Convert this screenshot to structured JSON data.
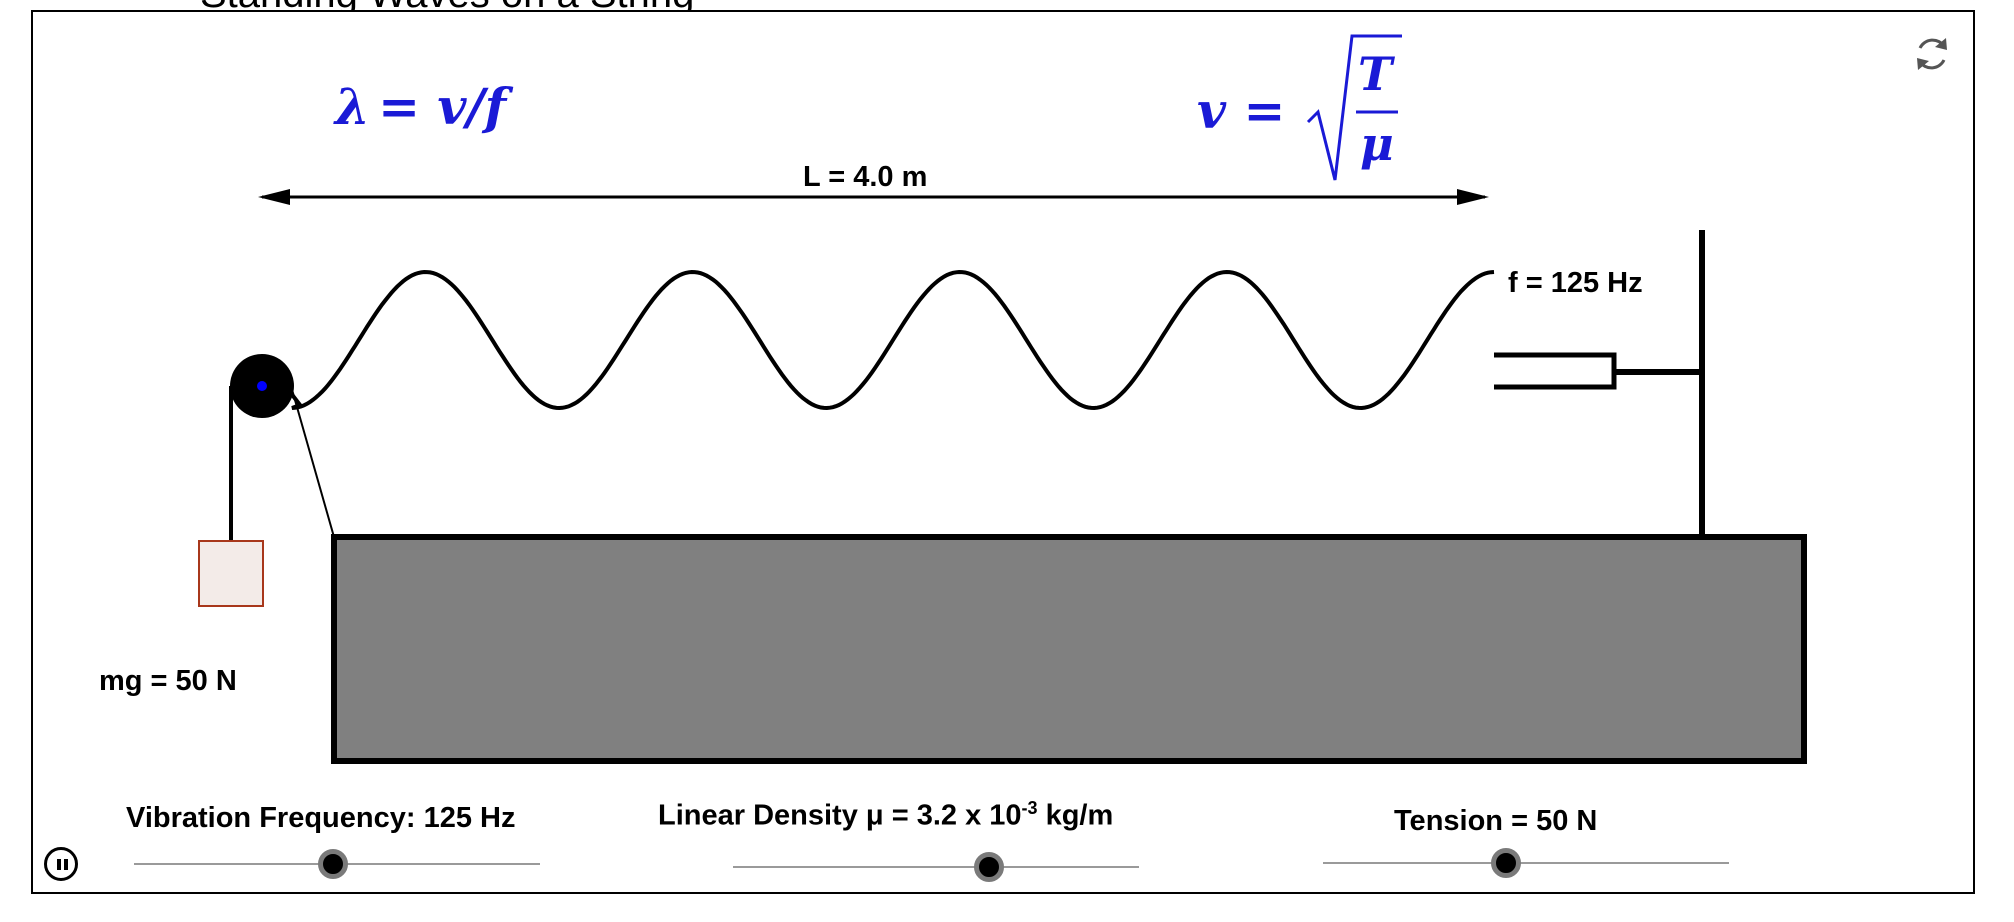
{
  "page": {
    "heading": "Standing Waves on a String"
  },
  "formulas": {
    "wavelength_lhs": "λ",
    "wavelength_rhs": "= v/f",
    "speed_lhs": "v =",
    "speed_numerator": "T",
    "speed_denominator": "μ"
  },
  "diagram": {
    "length_label": "L = 4.0 m",
    "frequency_label": "f = 125 Hz",
    "weight_label": "mg = 50 N",
    "table_color": "#808080",
    "mass_fill": "#f3ebe8",
    "mass_stroke": "#a8371b",
    "pulley_dot_color": "#0000ff",
    "wave_color": "#000000"
  },
  "controls": {
    "frequency": {
      "label": "Vibration Frequency: 125 Hz",
      "value_fraction": 0.49
    },
    "density": {
      "label_prefix": "Linear Density  μ = 3.2 x 10",
      "label_exponent": "-3",
      "label_suffix": " kg/m",
      "value_fraction": 0.63
    },
    "tension": {
      "label": "Tension = 50 N",
      "value_fraction": 0.45
    },
    "pause_icon": "pause-icon",
    "reset_icon": "refresh-icon"
  }
}
